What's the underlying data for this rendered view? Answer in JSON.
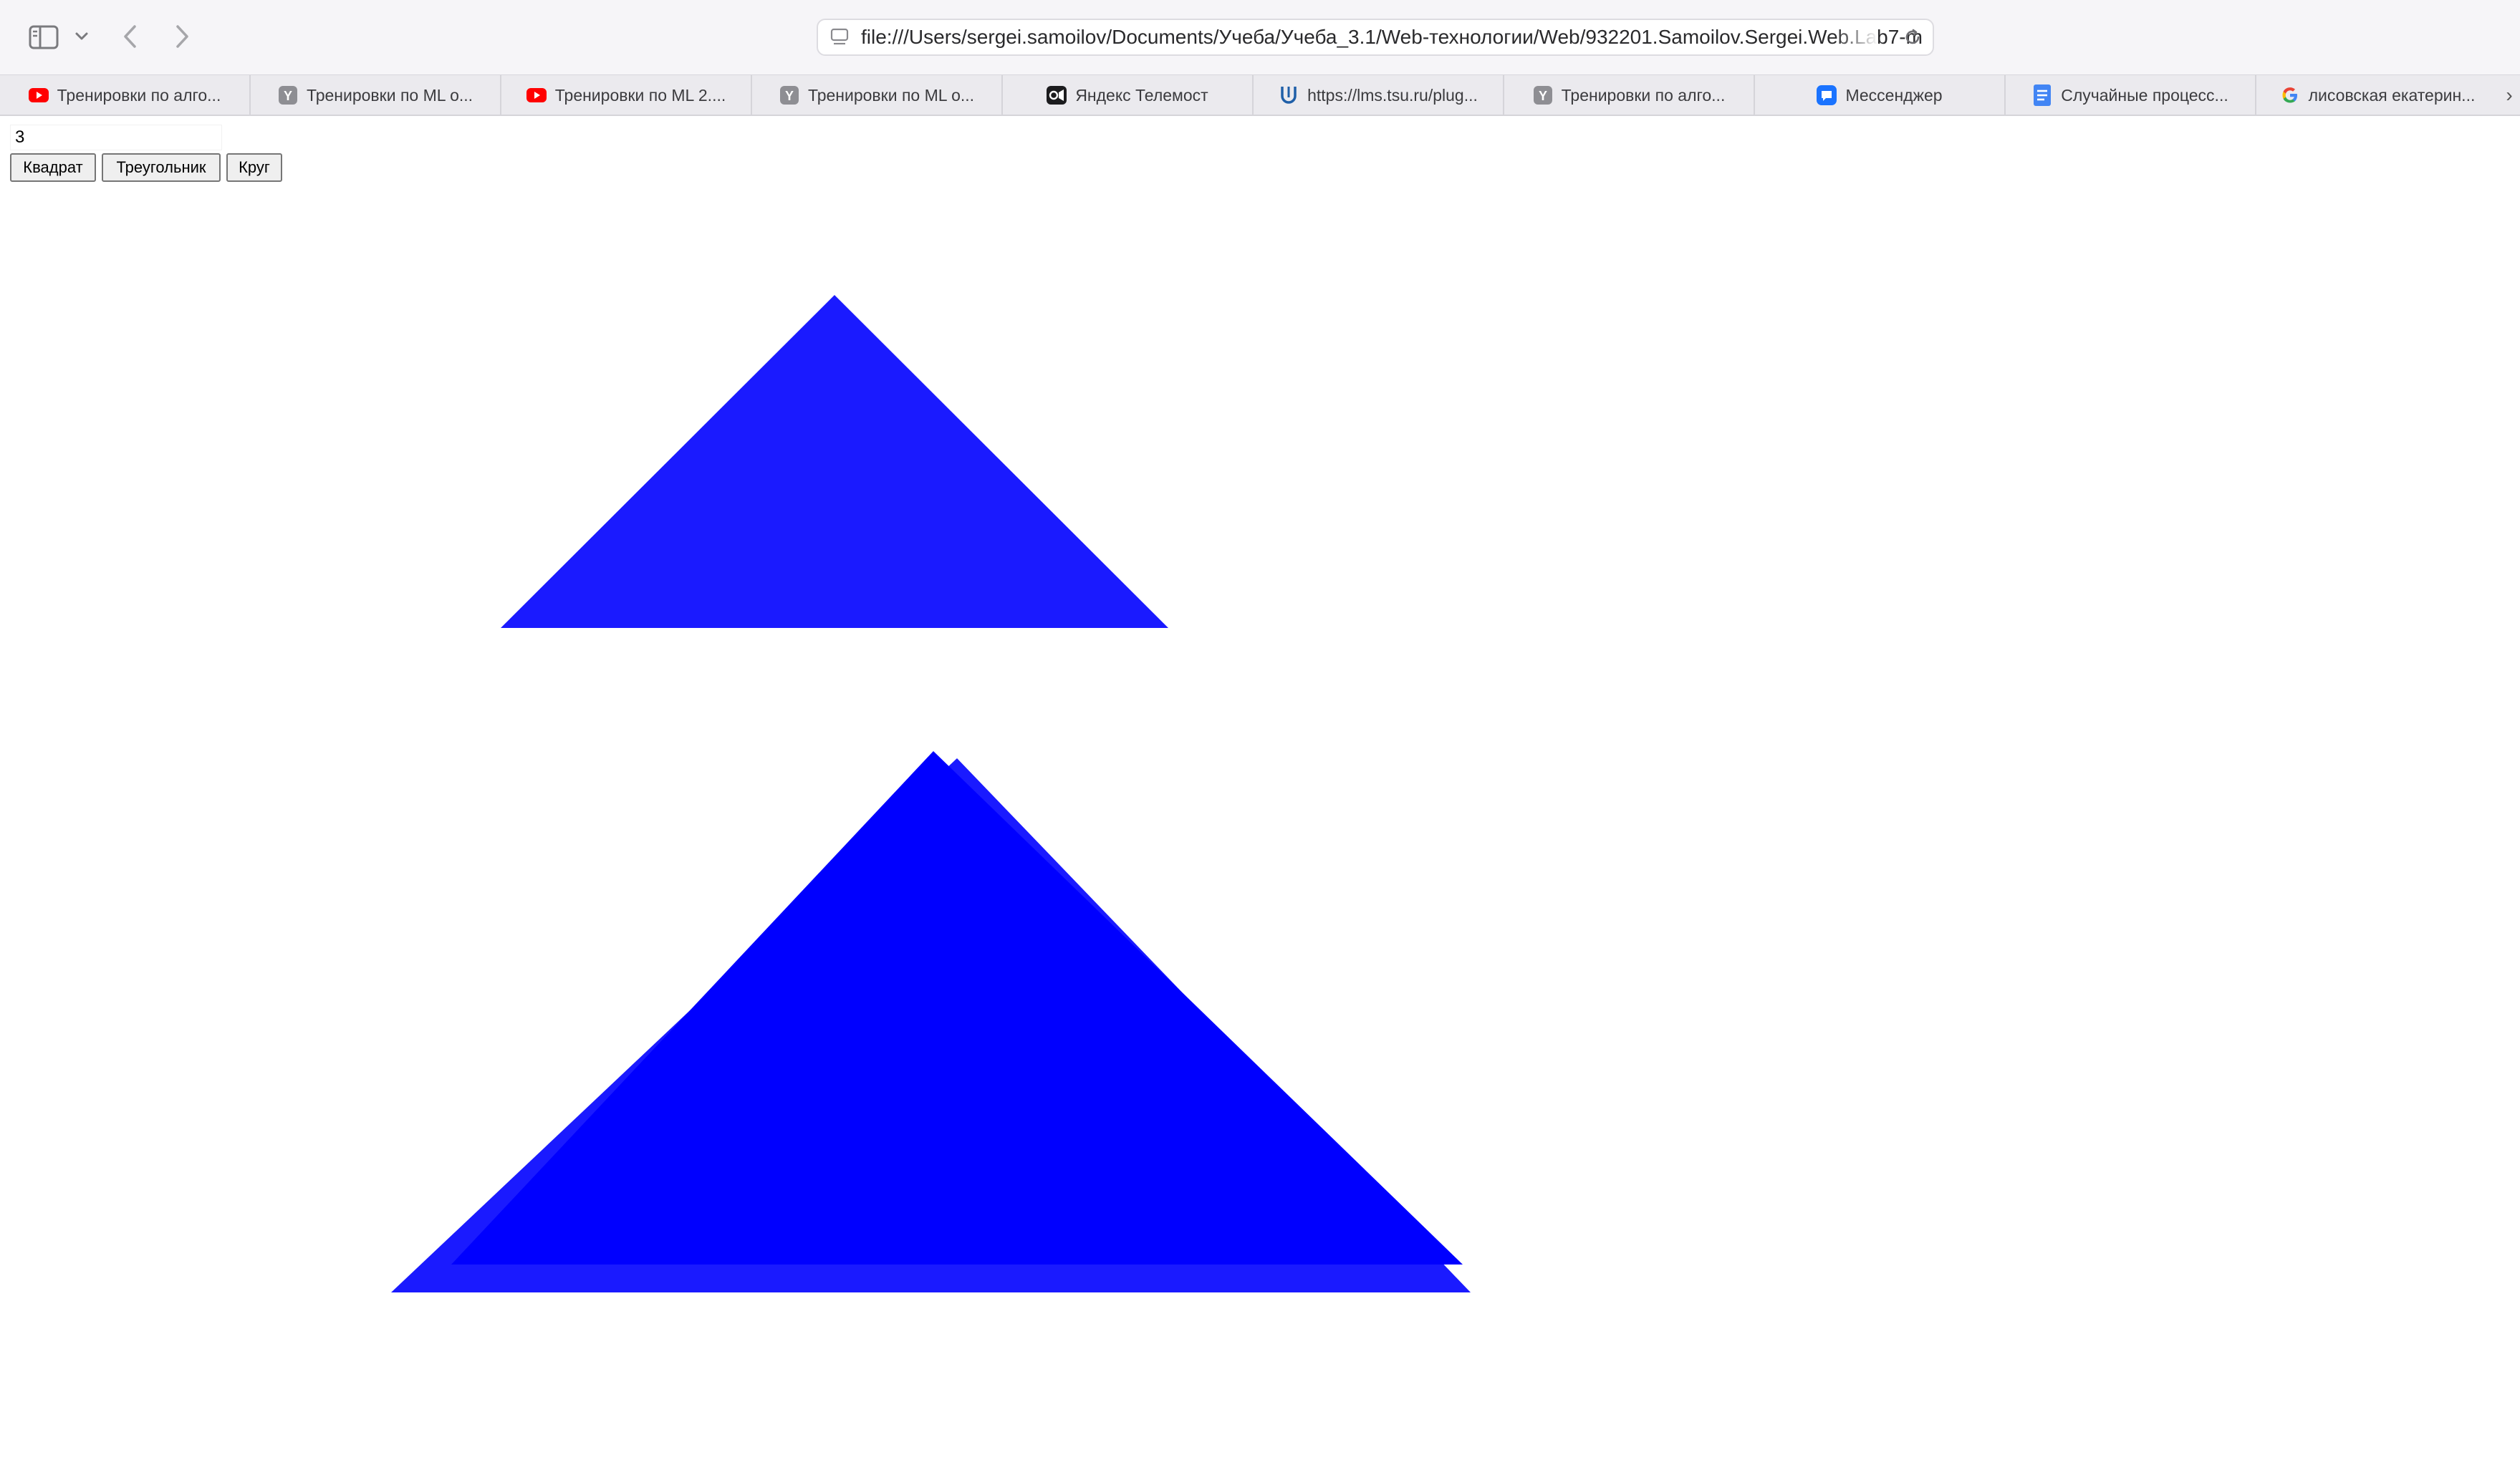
{
  "browser": {
    "address": "file:///Users/sergei.samoilov/Documents/Учеба/Учеба_3.1/Web-технологии/Web/932201.Samoilov.Sergei.Web.Lab7-m",
    "icons": {
      "sidebar": "sidebar-icon",
      "sidebar_menu": "chevron-down-icon",
      "back": "chevron-left-icon",
      "forward": "chevron-right-icon",
      "page": "page-icon",
      "reload": "reload-icon"
    }
  },
  "tabs": [
    {
      "label": "Тренировки по алго...",
      "icon": "youtube-icon",
      "color": "#ff0000"
    },
    {
      "label": "Тренировки по ML о...",
      "icon": "y-icon",
      "color": "#8e8e93"
    },
    {
      "label": "Тренировки по ML 2....",
      "icon": "youtube-icon",
      "color": "#ff0000"
    },
    {
      "label": "Тренировки по ML о...",
      "icon": "y-icon",
      "color": "#8e8e93"
    },
    {
      "label": "Яндекс Телемост",
      "icon": "telemost-icon",
      "color": "#1c1c1e"
    },
    {
      "label": "https://lms.tsu.ru/plug...",
      "icon": "lms-icon",
      "color": "#1f5fa8"
    },
    {
      "label": "Тренировки по алго...",
      "icon": "y-icon",
      "color": "#8e8e93"
    },
    {
      "label": "Мессенджер",
      "icon": "messenger-icon",
      "color": "#1a73ff"
    },
    {
      "label": "Случайные процесс...",
      "icon": "docs-icon",
      "color": "#4285f4"
    },
    {
      "label": "лисовская екатерин...",
      "icon": "google-icon",
      "color": "#4285f4"
    }
  ],
  "tab_overflow": "›",
  "form": {
    "count_value": "3",
    "buttons": [
      "Квадрат",
      "Треугольник",
      "Круг"
    ]
  },
  "shapes": {
    "type": "triangle",
    "count": 3,
    "colors": [
      "#1a1aff",
      "#1a1aff",
      "#0000ff"
    ]
  }
}
